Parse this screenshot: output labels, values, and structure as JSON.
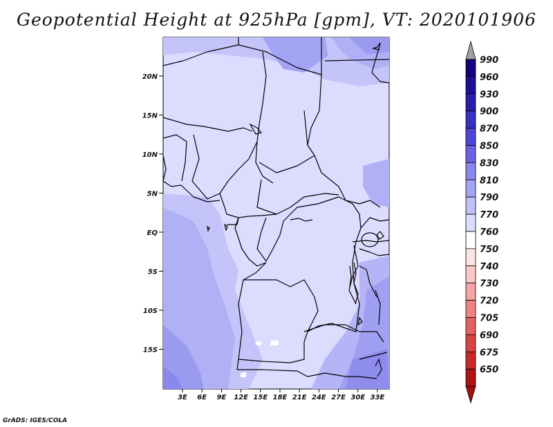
{
  "title": "Geopotential Height at 925hPa [gpm], VT: 2020101906",
  "credit": "GrADS: IGES/COLA",
  "map": {
    "lat_labels": [
      "20N",
      "15N",
      "10N",
      "5N",
      "EQ",
      "5S",
      "10S",
      "15S"
    ],
    "lon_labels": [
      "3E",
      "6E",
      "9E",
      "12E",
      "15E",
      "18E",
      "21E",
      "24E",
      "27E",
      "30E",
      "33E"
    ],
    "fill_colors": {
      "base": "#dcdcfe",
      "field_770_790": "#c6c6fb",
      "field_790_810": "#b0b0f6",
      "field_810_830": "#9a9aef",
      "field_830_850": "#8a88ec",
      "border": "#000000"
    }
  },
  "colorbar": {
    "levels": [
      {
        "label": "990",
        "color": "#14007c"
      },
      {
        "label": "960",
        "color": "#1e0e96"
      },
      {
        "label": "930",
        "color": "#2a1eac"
      },
      {
        "label": "900",
        "color": "#3a30c2"
      },
      {
        "label": "870",
        "color": "#5046d6"
      },
      {
        "label": "850",
        "color": "#6a62e2"
      },
      {
        "label": "830",
        "color": "#8a88ec"
      },
      {
        "label": "810",
        "color": "#a4a4f4"
      },
      {
        "label": "790",
        "color": "#c0c0fa"
      },
      {
        "label": "770",
        "color": "#dcdcfe"
      },
      {
        "label": "760",
        "color": "#ffffff"
      },
      {
        "label": "750",
        "color": "#fde4e4"
      },
      {
        "label": "740",
        "color": "#fbc6c6"
      },
      {
        "label": "730",
        "color": "#f4a4a4"
      },
      {
        "label": "720",
        "color": "#ec8484"
      },
      {
        "label": "705",
        "color": "#e26262"
      },
      {
        "label": "690",
        "color": "#d84444"
      },
      {
        "label": "675",
        "color": "#c82a2a"
      },
      {
        "label": "650",
        "color": "#b01414"
      }
    ],
    "top_arrow_color": "#a0a0a0",
    "bottom_arrow_color": "#a01010"
  }
}
